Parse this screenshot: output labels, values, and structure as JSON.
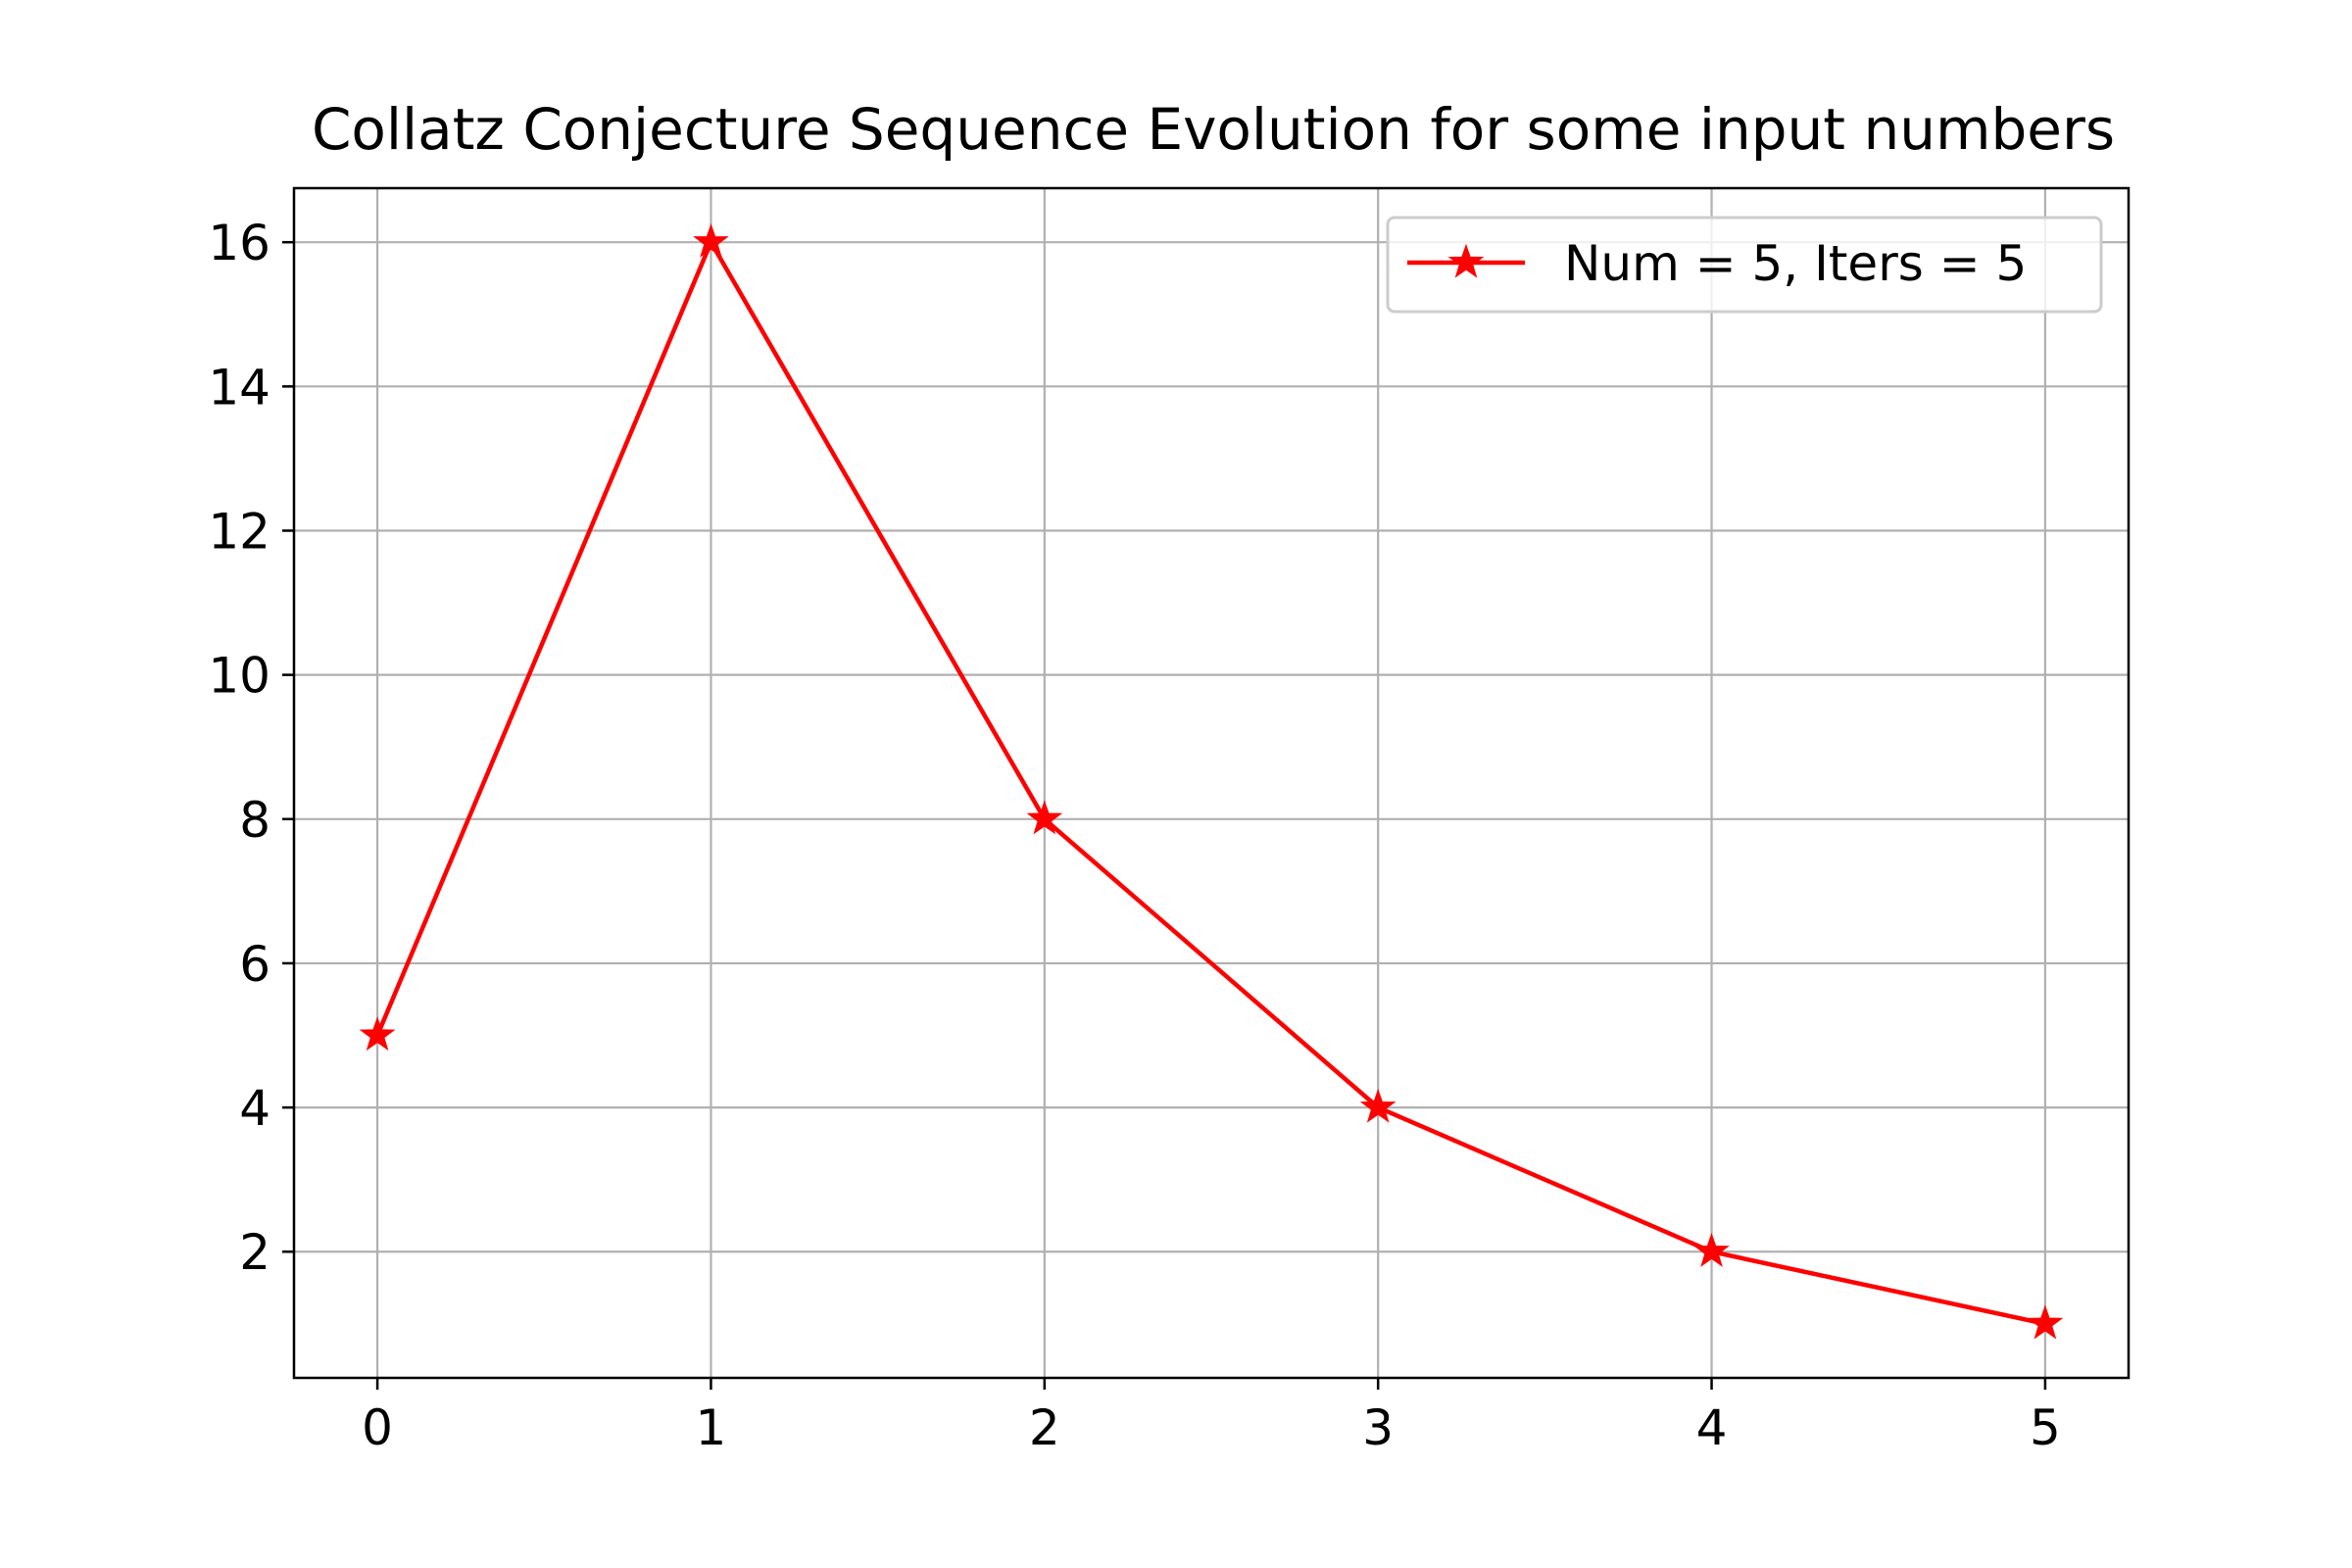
{
  "chart_data": {
    "type": "line",
    "title": "Collatz Conjecture Sequence Evolution for some input numbers",
    "xlabel": "",
    "ylabel": "",
    "xlim": [
      -0.25,
      5.25
    ],
    "ylim": [
      0.25,
      16.75
    ],
    "x_ticks": [
      0,
      1,
      2,
      3,
      4,
      5
    ],
    "y_ticks": [
      2,
      4,
      6,
      8,
      10,
      12,
      14,
      16
    ],
    "grid": true,
    "legend_position": "upper right",
    "series": [
      {
        "name": "Num = 5, Iters = 5",
        "color": "#ff0000",
        "marker": "star",
        "x": [
          0,
          1,
          2,
          3,
          4,
          5
        ],
        "y": [
          5,
          16,
          8,
          4,
          2,
          1
        ]
      }
    ]
  }
}
